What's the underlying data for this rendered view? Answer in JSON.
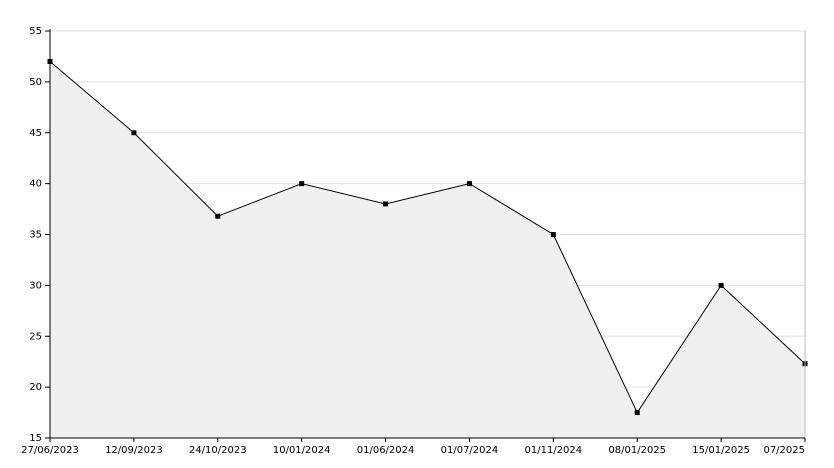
{
  "chart_data": {
    "type": "area",
    "categories": [
      "27/06/2023",
      "12/09/2023",
      "24/10/2023",
      "10/01/2024",
      "01/06/2024",
      "01/07/2024",
      "01/11/2024",
      "08/01/2025",
      "15/01/2025",
      "07/2025"
    ],
    "values": [
      52,
      45,
      36.8,
      40,
      38,
      40,
      35,
      17.5,
      30,
      22.3
    ],
    "color": "#000000",
    "fill": "#f0f0f0",
    "ylim": [
      15,
      55
    ],
    "yticks": [
      15,
      20,
      25,
      30,
      35,
      40,
      45,
      50,
      55
    ],
    "grid": true
  }
}
